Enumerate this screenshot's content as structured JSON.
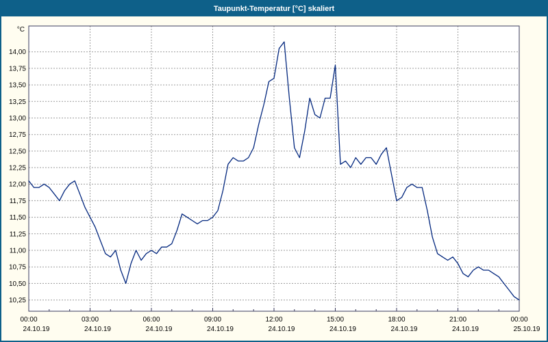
{
  "window": {
    "title": "Taupunkt-Temperatur [°C] skaliert"
  },
  "chart_data": {
    "type": "line",
    "title": "Taupunkt-Temperatur [°C] skaliert",
    "xlabel": "",
    "ylabel": "°C",
    "ylim": [
      10.08,
      14.39
    ],
    "yticks": [
      14.0,
      13.75,
      13.5,
      13.25,
      13.0,
      12.75,
      12.5,
      12.25,
      12.0,
      11.75,
      11.5,
      11.25,
      11.0,
      10.75,
      10.5,
      10.25
    ],
    "ytick_labels": [
      "14,00",
      "13,75",
      "13,50",
      "13,25",
      "13,00",
      "12,75",
      "12,50",
      "12,25",
      "12,00",
      "11,75",
      "11,50",
      "11,25",
      "11,00",
      "10,75",
      "10,50",
      "10,25"
    ],
    "xlim_hours": [
      0,
      24
    ],
    "xticks_hours": [
      0,
      3,
      6,
      9,
      12,
      15,
      18,
      21,
      24
    ],
    "xtick_times": [
      "00:00",
      "03:00",
      "06:00",
      "09:00",
      "12:00",
      "15:00",
      "18:00",
      "21:00",
      "00:00"
    ],
    "xtick_dates": [
      "24.10.19",
      "24.10.19",
      "24.10.19",
      "24.10.19",
      "24.10.19",
      "24.10.19",
      "24.10.19",
      "24.10.19",
      "25.10.19"
    ],
    "grid": true,
    "legend_position": "none",
    "series": [
      {
        "name": "Taupunkt-Temperatur",
        "x": [
          0,
          0.25,
          0.5,
          0.75,
          1,
          1.25,
          1.5,
          1.75,
          2,
          2.25,
          2.5,
          2.75,
          3,
          3.25,
          3.5,
          3.75,
          4,
          4.25,
          4.5,
          4.75,
          5,
          5.25,
          5.5,
          5.75,
          6,
          6.25,
          6.5,
          6.75,
          7,
          7.25,
          7.5,
          7.75,
          8,
          8.25,
          8.5,
          8.75,
          9,
          9.25,
          9.5,
          9.75,
          10,
          10.25,
          10.5,
          10.75,
          11,
          11.25,
          11.5,
          11.75,
          12,
          12.25,
          12.5,
          12.75,
          13,
          13.25,
          13.5,
          13.75,
          14,
          14.25,
          14.5,
          14.75,
          15,
          15.25,
          15.5,
          15.75,
          16,
          16.25,
          16.5,
          16.75,
          17,
          17.25,
          17.5,
          17.75,
          18,
          18.25,
          18.5,
          18.75,
          19,
          19.25,
          19.5,
          19.75,
          20,
          20.25,
          20.5,
          20.75,
          21,
          21.25,
          21.5,
          21.75,
          22,
          22.25,
          22.5,
          22.75,
          23,
          23.25,
          23.5,
          23.75,
          24
        ],
        "y": [
          12.05,
          11.95,
          11.95,
          12.0,
          11.95,
          11.85,
          11.75,
          11.9,
          12.0,
          12.05,
          11.85,
          11.65,
          11.5,
          11.35,
          11.15,
          10.95,
          10.9,
          11.0,
          10.7,
          10.5,
          10.8,
          11.0,
          10.85,
          10.95,
          11.0,
          10.95,
          11.05,
          11.05,
          11.1,
          11.3,
          11.55,
          11.5,
          11.45,
          11.4,
          11.45,
          11.45,
          11.5,
          11.6,
          11.9,
          12.3,
          12.4,
          12.35,
          12.35,
          12.4,
          12.55,
          12.9,
          13.2,
          13.55,
          13.6,
          14.05,
          14.15,
          13.3,
          12.55,
          12.4,
          12.8,
          13.3,
          13.05,
          13.0,
          13.3,
          13.3,
          13.8,
          12.3,
          12.35,
          12.25,
          12.4,
          12.3,
          12.4,
          12.4,
          12.3,
          12.45,
          12.55,
          12.15,
          11.75,
          11.8,
          11.95,
          12.0,
          11.95,
          11.95,
          11.6,
          11.2,
          10.95,
          10.9,
          10.85,
          10.9,
          10.8,
          10.65,
          10.6,
          10.7,
          10.75,
          10.7,
          10.7,
          10.65,
          10.6,
          10.5,
          10.4,
          10.3,
          10.25
        ]
      }
    ],
    "colors": {
      "titlebar": "#0e6089",
      "titlebar_text": "#ffffff",
      "line": "#00257d",
      "grid": "#9a9a9a",
      "background": "#fffdf0",
      "plot_background": "#ffffff",
      "frame": "#3a3a5c"
    }
  }
}
